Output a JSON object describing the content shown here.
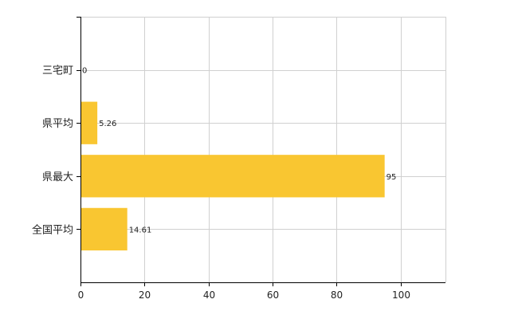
{
  "chart_data": {
    "type": "bar",
    "orientation": "horizontal",
    "categories": [
      "三宅町",
      "県平均",
      "県最大",
      "全国平均"
    ],
    "values": [
      0,
      5.26,
      95,
      14.61
    ],
    "data_labels": [
      "0",
      "5.26",
      "95",
      "14.61"
    ],
    "xlim": [
      0,
      114
    ],
    "x_ticks": [
      0,
      20,
      40,
      60,
      80,
      100
    ],
    "x_tick_labels": [
      "0",
      "20",
      "40",
      "60",
      "80",
      "100"
    ],
    "grid": true,
    "legend": "none",
    "colors": {
      "bar": "#F9C631",
      "grid": "#D0D0D0",
      "axis": "#000000"
    }
  }
}
